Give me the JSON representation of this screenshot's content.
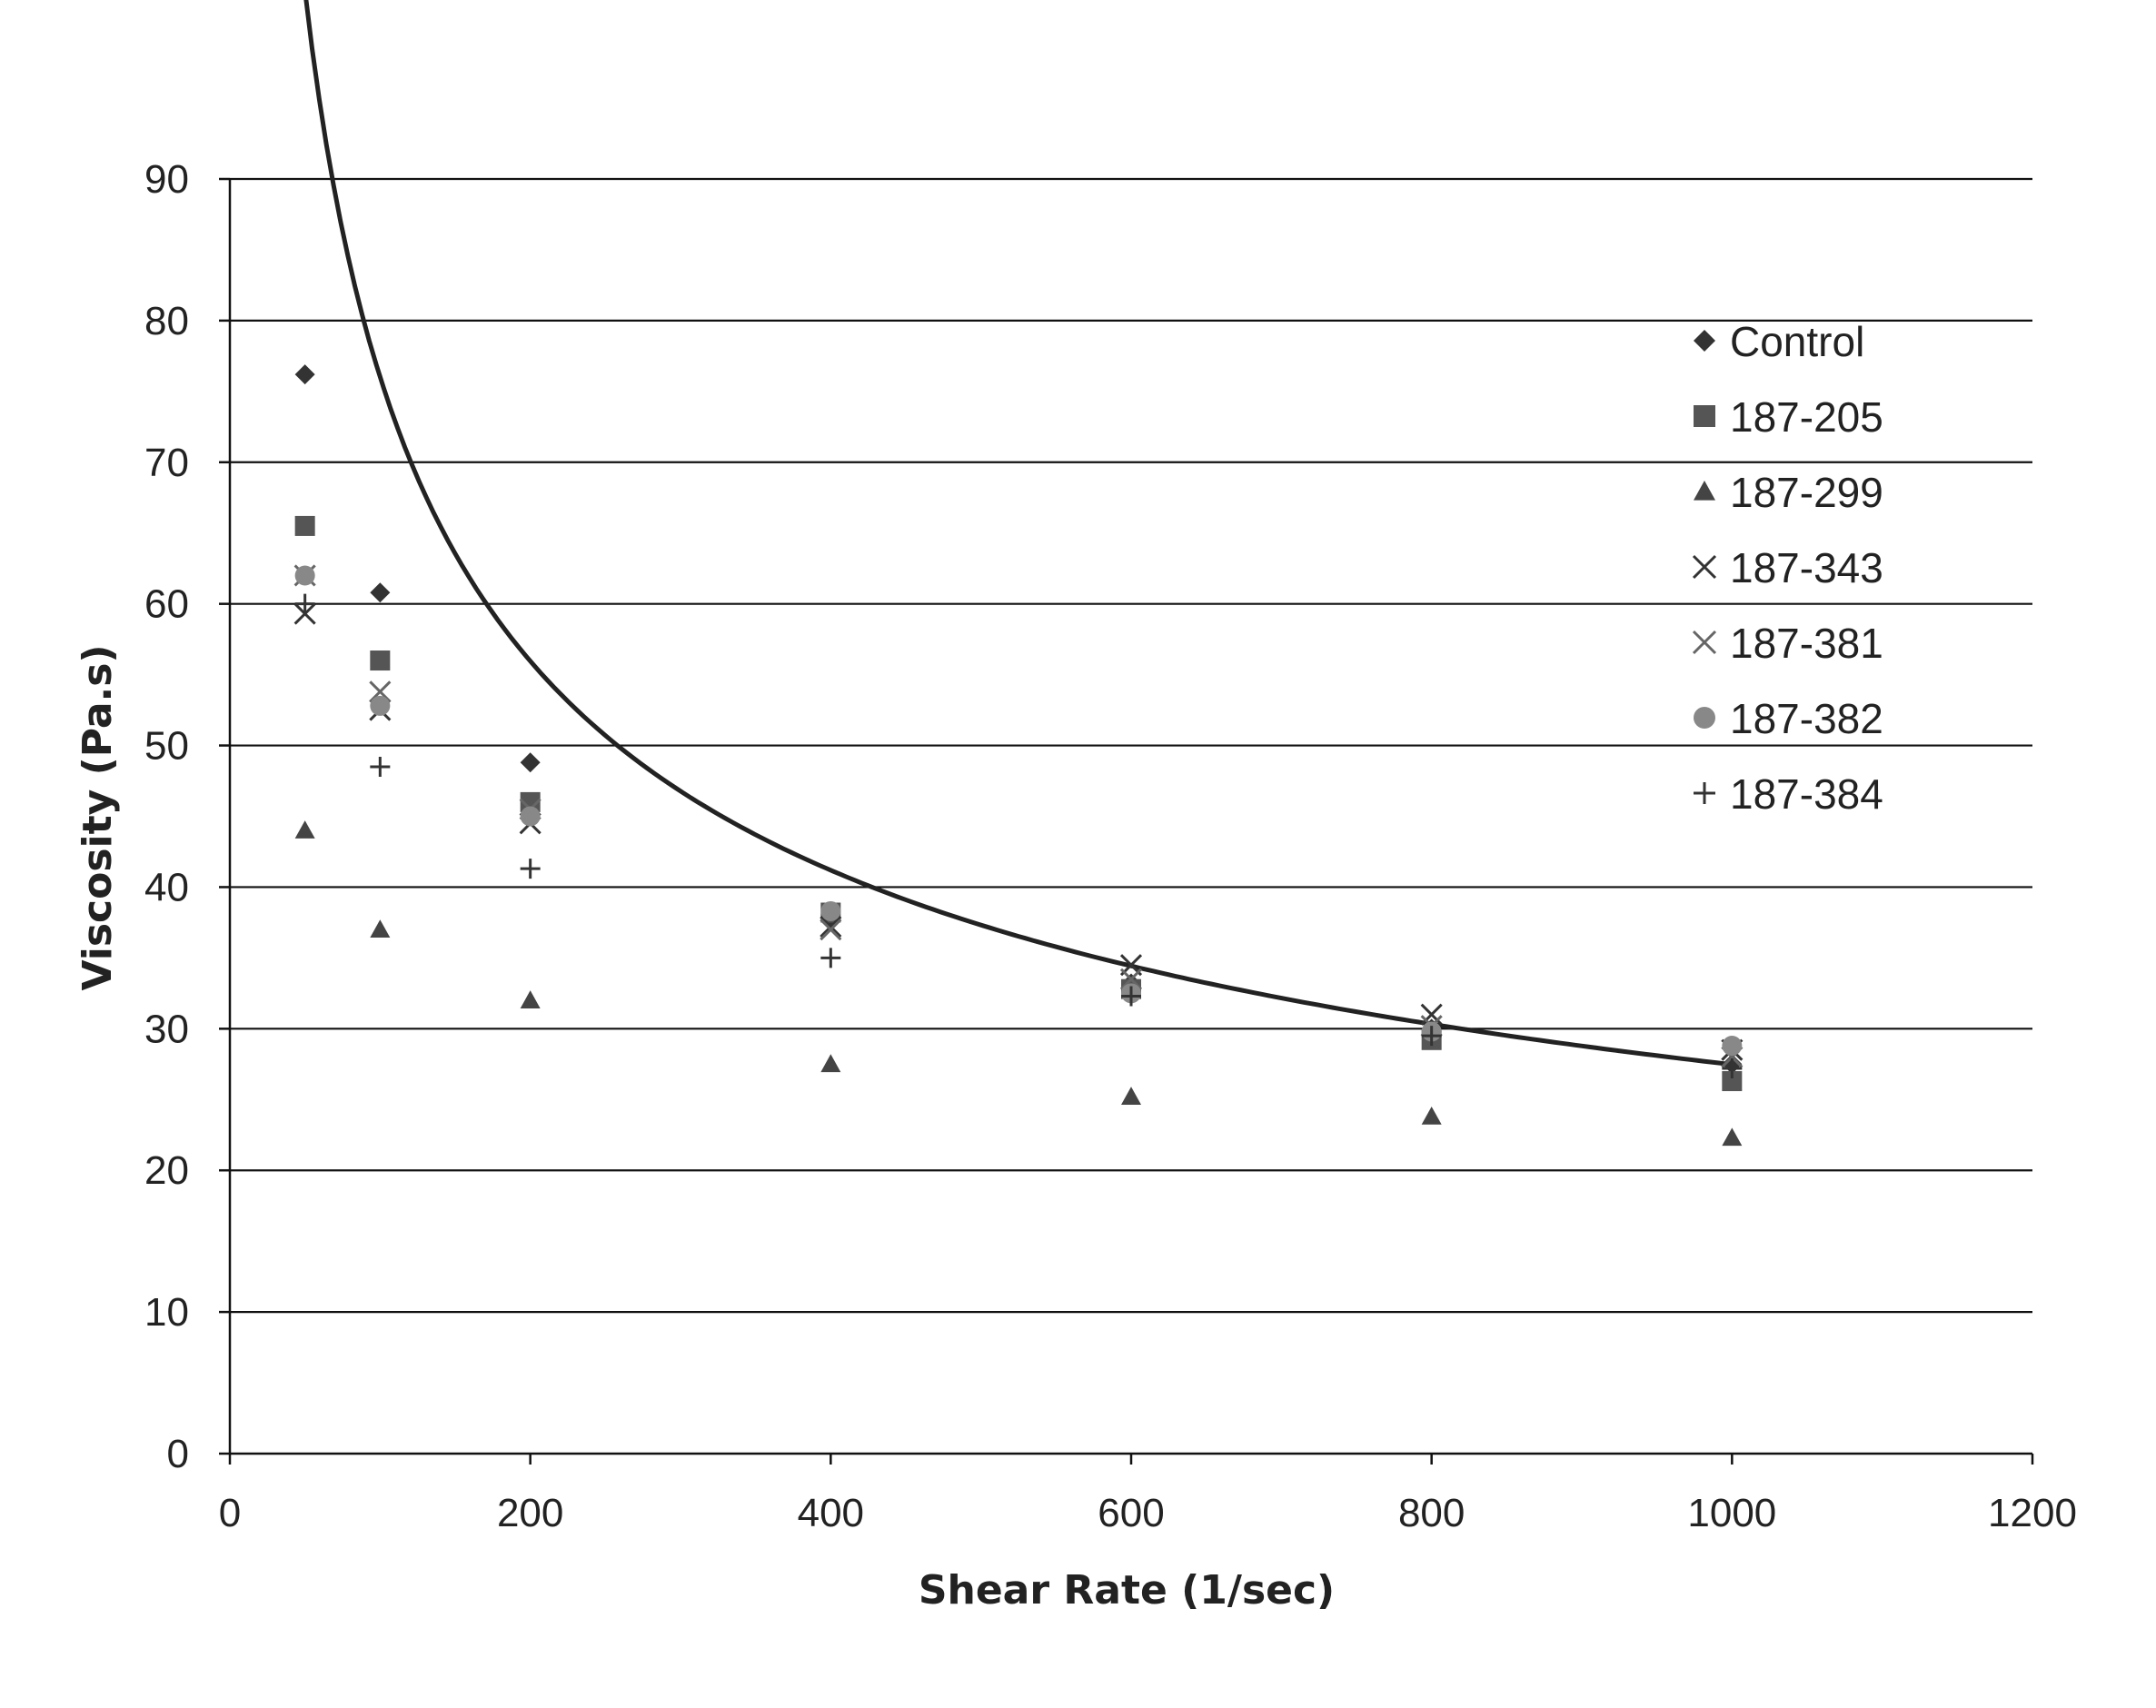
{
  "chart_data": {
    "type": "scatter",
    "title": "",
    "xlabel": "Shear Rate (1/sec)",
    "ylabel": "Viscosity (Pa.s)",
    "xlim": [
      0,
      1200
    ],
    "ylim": [
      0,
      90
    ],
    "xticks": [
      "0",
      "200",
      "400",
      "600",
      "800",
      "1000",
      "1200"
    ],
    "yticks": [
      "0",
      "10",
      "20",
      "30",
      "40",
      "50",
      "60",
      "70",
      "80",
      "90"
    ],
    "grid": "horizontal",
    "legend_position": "top-right",
    "series": [
      {
        "name": "Control",
        "marker": "diamond",
        "color": "#333333",
        "x": [
          50,
          100,
          200,
          400,
          600,
          800,
          1000
        ],
        "y": [
          76.2,
          60.8,
          48.8,
          37.8,
          33.2,
          30.0,
          27.5
        ]
      },
      {
        "name": "187-205",
        "marker": "square",
        "color": "#555555",
        "x": [
          50,
          100,
          200,
          400,
          600,
          800,
          1000
        ],
        "y": [
          65.5,
          56.0,
          46.0,
          38.2,
          32.8,
          29.2,
          26.3
        ]
      },
      {
        "name": "187-299",
        "marker": "triangle",
        "color": "#444444",
        "x": [
          50,
          100,
          200,
          400,
          600,
          800,
          1000
        ],
        "y": [
          44.0,
          37.0,
          32.0,
          27.5,
          25.2,
          23.8,
          22.3
        ]
      },
      {
        "name": "187-343",
        "marker": "x",
        "color": "#333333",
        "x": [
          50,
          100,
          200,
          400,
          600,
          800,
          1000
        ],
        "y": [
          59.3,
          52.5,
          44.5,
          37.2,
          34.5,
          31.0,
          28.5
        ]
      },
      {
        "name": "187-381",
        "marker": "x",
        "color": "#666666",
        "x": [
          50,
          100,
          200,
          400,
          600,
          800,
          1000
        ],
        "y": [
          62.0,
          53.8,
          45.5,
          37.0,
          33.5,
          30.2,
          28.0
        ]
      },
      {
        "name": "187-382",
        "marker": "circle",
        "color": "#888888",
        "x": [
          50,
          100,
          200,
          400,
          600,
          800,
          1000
        ],
        "y": [
          62.0,
          52.8,
          45.0,
          38.3,
          32.5,
          29.8,
          28.8
        ]
      },
      {
        "name": "187-384",
        "marker": "plus",
        "color": "#333333",
        "x": [
          50,
          100,
          200,
          400,
          600,
          800,
          1000
        ],
        "y": [
          60.0,
          48.5,
          41.3,
          35.0,
          32.3,
          29.5,
          27.2
        ]
      }
    ],
    "trendline": {
      "type": "power",
      "a": 582.0,
      "b": -0.442,
      "from": 50,
      "to": 1000,
      "color": "#222222"
    }
  }
}
